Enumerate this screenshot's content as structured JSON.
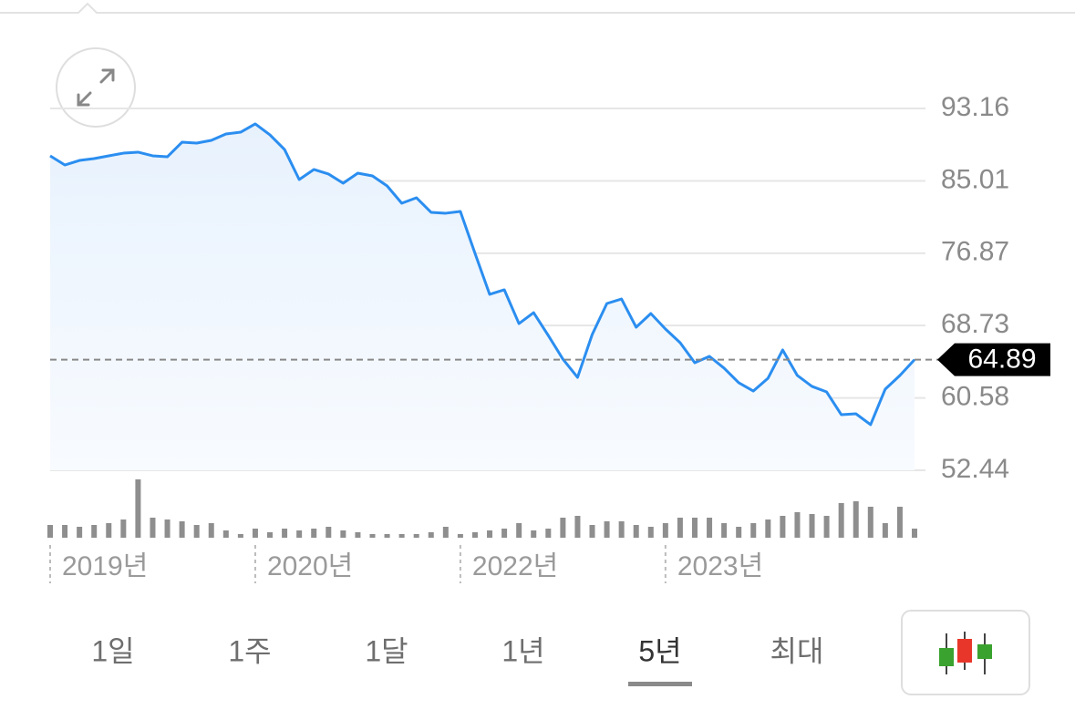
{
  "chart_data": {
    "type": "line",
    "categories": [
      "2019년",
      null,
      null,
      null,
      null,
      null,
      null,
      null,
      null,
      null,
      null,
      null,
      null,
      null,
      "2020년",
      null,
      null,
      null,
      null,
      null,
      null,
      null,
      null,
      null,
      null,
      null,
      null,
      null,
      "2022년",
      null,
      null,
      null,
      null,
      null,
      null,
      null,
      null,
      null,
      null,
      null,
      null,
      null,
      "2023년",
      null,
      null,
      null,
      null,
      null,
      null,
      null,
      null,
      null,
      null,
      null,
      null,
      null,
      null,
      null,
      null,
      null
    ],
    "series": [
      {
        "color": "#2b8ef0",
        "values": [
          87.83,
          86.8,
          87.31,
          87.52,
          87.83,
          88.13,
          88.24,
          87.83,
          87.72,
          89.36,
          89.26,
          89.57,
          90.29,
          90.49,
          91.42,
          90.19,
          88.54,
          85.16,
          86.29,
          85.78,
          84.75,
          85.88,
          85.57,
          84.44,
          82.49,
          83.11,
          81.47,
          81.37,
          81.57,
          76.85,
          72.24,
          72.75,
          68.95,
          70.18,
          67.62,
          64.95,
          62.9,
          67.72,
          71.21,
          71.72,
          68.54,
          70.08,
          68.34,
          66.8,
          64.54,
          65.26,
          63.93,
          62.29,
          61.36,
          62.8,
          65.98,
          63.11,
          61.88,
          61.26,
          58.7,
          58.8,
          57.57,
          61.57,
          63.11,
          64.89
        ]
      }
    ],
    "volume": {
      "color": "#8e8e8e",
      "values": [
        14,
        14,
        12,
        14,
        16,
        20,
        64,
        22,
        20,
        18,
        14,
        16,
        8,
        4,
        10,
        6,
        10,
        8,
        10,
        12,
        8,
        6,
        4,
        4,
        4,
        4,
        6,
        12,
        4,
        6,
        8,
        10,
        16,
        8,
        10,
        22,
        24,
        14,
        18,
        18,
        14,
        12,
        16,
        22,
        22,
        22,
        16,
        12,
        16,
        20,
        24,
        28,
        26,
        24,
        38,
        40,
        34,
        16,
        34,
        10
      ]
    },
    "ylim": [
      52.44,
      93.16
    ],
    "yticks": [
      93.16,
      85.01,
      76.87,
      68.73,
      60.58,
      52.44
    ],
    "grid": true
  },
  "controls": {
    "ranges": [
      "1일",
      "1주",
      "1달",
      "1년",
      "5년",
      "최대"
    ],
    "selected_range": 4
  }
}
